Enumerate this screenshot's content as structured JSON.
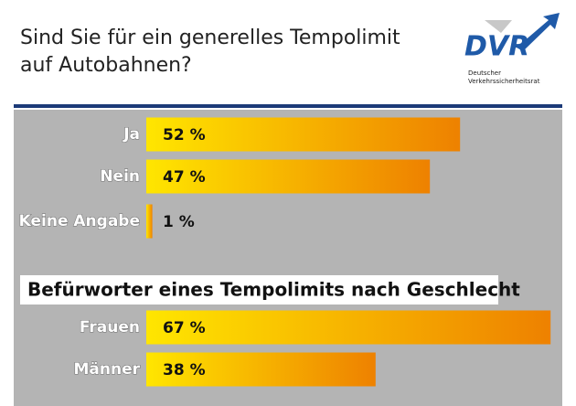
{
  "header": {
    "title": [
      "Sind Sie für ein generelles Tempolimit",
      "auf Autobahnen?"
    ],
    "logo": {
      "name": "DVR",
      "subtitle": [
        "Deutscher",
        "Verkehrssicherheitsrat"
      ]
    }
  },
  "chart_data": [
    {
      "type": "bar",
      "orientation": "horizontal",
      "categories": [
        "Ja",
        "Nein",
        "Keine Angabe"
      ],
      "values": [
        52,
        47,
        1
      ],
      "value_labels": [
        "52 %",
        "47 %",
        "1 %"
      ],
      "colors": [
        "#ffe600",
        "#ee8100"
      ]
    },
    {
      "type": "bar",
      "orientation": "horizontal",
      "title": "Befürworter eines Tempolimits nach Geschlecht",
      "categories": [
        "Frauen",
        "Männer"
      ],
      "values": [
        67,
        38
      ],
      "value_labels": [
        "67 %",
        "38 %"
      ],
      "colors": [
        "#ffe600",
        "#ee8100"
      ]
    }
  ]
}
